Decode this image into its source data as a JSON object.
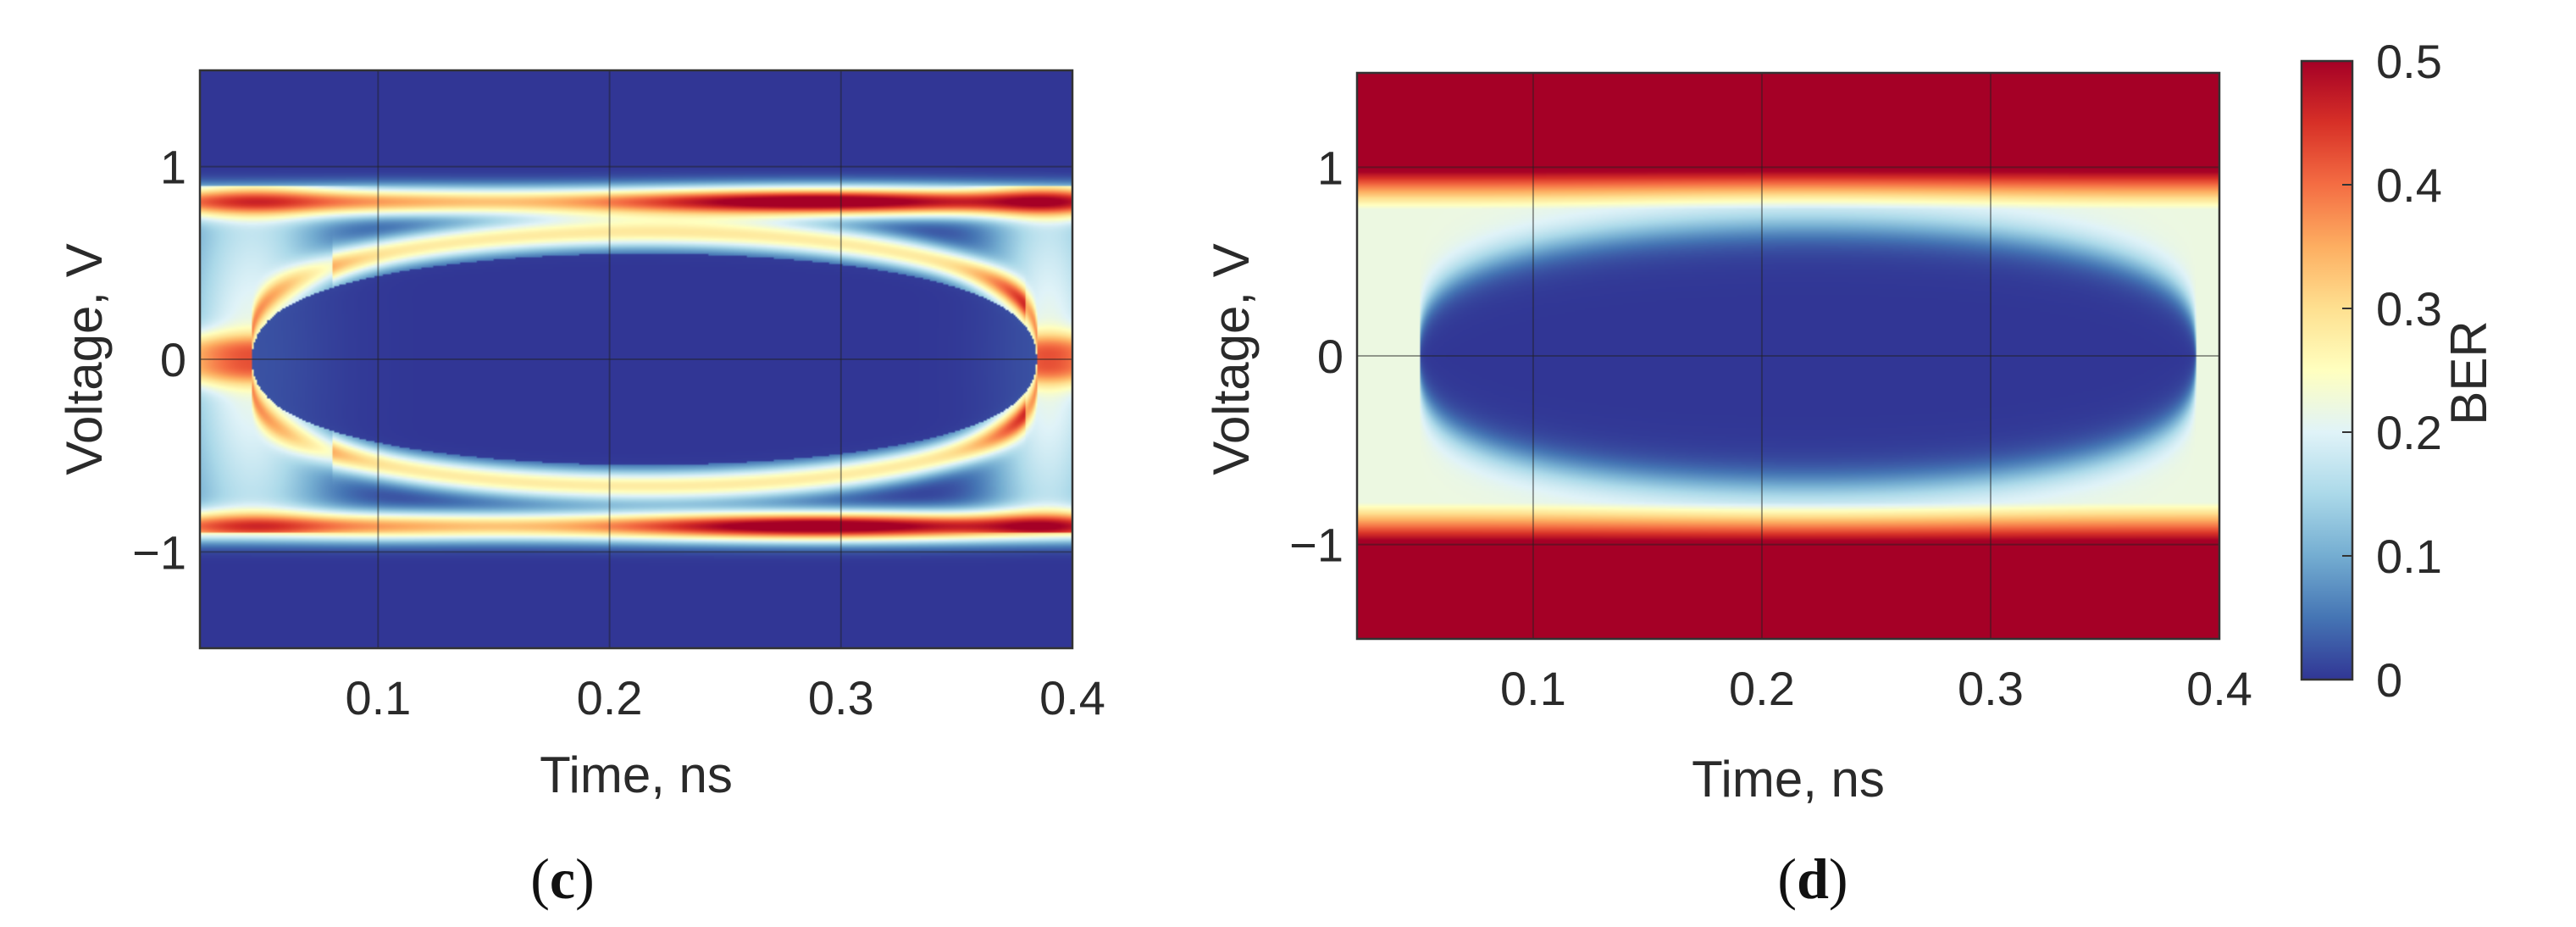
{
  "chart_data": [
    {
      "type": "heatmap",
      "panel_label": "c",
      "xlabel": "Time, ns",
      "ylabel": "Voltage, V",
      "xlim": [
        0.023,
        0.4
      ],
      "ylim": [
        -1.5,
        1.5
      ],
      "x_ticks": [
        0.1,
        0.2,
        0.3,
        0.4
      ],
      "x_tick_labels": [
        "0.1",
        "0.2",
        "0.3",
        "0.4"
      ],
      "y_ticks": [
        1,
        0,
        -1
      ],
      "y_tick_labels": [
        "1",
        "0",
        "−1"
      ],
      "grid": true,
      "colorscale_range": [
        0,
        0.5
      ],
      "description_model": "eye_diagram_density",
      "rails": {
        "upper_level": 0.82,
        "lower_level": -0.87,
        "peak_value": 0.45
      },
      "eye_opening": {
        "center_x": 0.215,
        "half_width_x": 0.17,
        "half_height_v": 0.6
      }
    },
    {
      "type": "heatmap",
      "panel_label": "d",
      "xlabel": "Time, ns",
      "ylabel": "Voltage, V",
      "xlim": [
        0.023,
        0.4
      ],
      "ylim": [
        -1.5,
        1.5
      ],
      "x_ticks": [
        0.1,
        0.2,
        0.3,
        0.4
      ],
      "x_tick_labels": [
        "0.1",
        "0.2",
        "0.3",
        "0.4"
      ],
      "y_ticks": [
        1,
        0,
        -1
      ],
      "y_tick_labels": [
        "1",
        "0",
        "−1"
      ],
      "grid": true,
      "colorscale_range": [
        0,
        0.5
      ],
      "description_model": "ber_contour",
      "outer_level": 0.5,
      "band_level": 0.22,
      "eye_opening": {
        "center_x": 0.22,
        "half_width_x": 0.17,
        "half_height_v": 0.7
      }
    }
  ],
  "colorbar": {
    "label": "BER",
    "ticks": [
      0.5,
      0.4,
      0.3,
      0.2,
      0.1,
      0
    ],
    "tick_labels": [
      "0.5",
      "0.4",
      "0.3",
      "0.2",
      "0.1",
      "0"
    ],
    "colors": [
      "#313695",
      "#4575b4",
      "#74add1",
      "#abd9e9",
      "#e0f3f8",
      "#ffffbf",
      "#fee090",
      "#fdae61",
      "#f46d43",
      "#d73027",
      "#a50026"
    ]
  }
}
